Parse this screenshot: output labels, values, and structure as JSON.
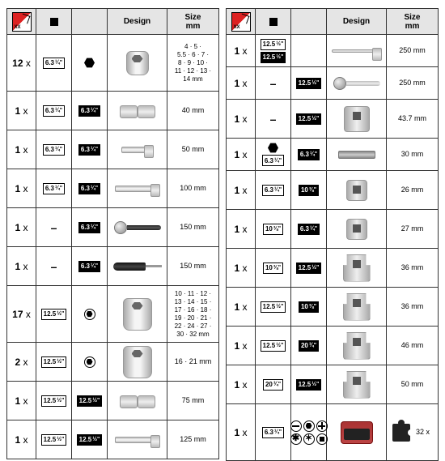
{
  "headers": {
    "design": "Design",
    "size": "Size\nmm"
  },
  "left": [
    {
      "qty": "12",
      "drive": {
        "t": "tag",
        "n": "6.3",
        "f": "¼\""
      },
      "type": {
        "t": "hex"
      },
      "tool": "socket",
      "size": "4 · 5 ·\n5.5 · 6 · 7 ·\n8 · 9 · 10 ·\n11 · 12 · 13 ·\n14 mm",
      "tall": true,
      "multi": true
    },
    {
      "qty": "1",
      "drive": {
        "t": "tag",
        "n": "6.3",
        "f": "¼\""
      },
      "type": {
        "t": "tagInv",
        "n": "6.3",
        "f": "¼\""
      },
      "tool": "ujoint",
      "size": "40 mm"
    },
    {
      "qty": "1",
      "drive": {
        "t": "tag",
        "n": "6.3",
        "f": "¼\""
      },
      "type": {
        "t": "tagInv",
        "n": "6.3",
        "f": "¼\""
      },
      "tool": "ext40",
      "size": "50 mm"
    },
    {
      "qty": "1",
      "drive": {
        "t": "tag",
        "n": "6.3",
        "f": "¼\""
      },
      "type": {
        "t": "tagInv",
        "n": "6.3",
        "f": "¼\""
      },
      "tool": "ext56",
      "size": "100 mm"
    },
    {
      "qty": "1",
      "drive": {
        "t": "dash"
      },
      "type": {
        "t": "tagInv",
        "n": "6.3",
        "f": "¼\""
      },
      "tool": "ratchet",
      "size": "150 mm"
    },
    {
      "qty": "1",
      "drive": {
        "t": "dash"
      },
      "type": {
        "t": "tagInv",
        "n": "6.3",
        "f": "¼\""
      },
      "tool": "screwd",
      "size": "150 mm"
    },
    {
      "qty": "17",
      "drive": {
        "t": "tag",
        "n": "12.5",
        "f": "½\""
      },
      "type": {
        "t": "chex"
      },
      "tool": "socketL",
      "size": "10 · 11 · 12 ·\n13 · 14 · 15 ·\n17 · 16 · 18 ·\n19 · 20 · 21 ·\n22 · 24 · 27 ·\n30 · 32 mm",
      "tall": true,
      "multi": true
    },
    {
      "qty": "2",
      "drive": {
        "t": "tag",
        "n": "12.5",
        "f": "½\""
      },
      "type": {
        "t": "chex"
      },
      "tool": "socketL",
      "size": "16 · 21 mm"
    },
    {
      "qty": "1",
      "drive": {
        "t": "tag",
        "n": "12.5",
        "f": "½\""
      },
      "type": {
        "t": "tagInv",
        "n": "12.5",
        "f": "½\""
      },
      "tool": "ujoint",
      "size": "75 mm"
    },
    {
      "qty": "1",
      "drive": {
        "t": "tag",
        "n": "12.5",
        "f": "½\""
      },
      "type": {
        "t": "tagInv",
        "n": "12.5",
        "f": "½\""
      },
      "tool": "ext56",
      "size": "125 mm"
    }
  ],
  "right": [
    {
      "qty": "1",
      "drive": {
        "t": "pair",
        "a": {
          "t": "tag",
          "n": "12.5",
          "f": "½\""
        },
        "b": {
          "t": "tagInv",
          "n": "12.5",
          "f": "½\""
        }
      },
      "type": {
        "t": "none"
      },
      "tool": "ext62thin",
      "size": "250 mm",
      "short": true
    },
    {
      "qty": "1",
      "drive": {
        "t": "dash"
      },
      "type": {
        "t": "tagInv",
        "n": "12.5",
        "f": "½\""
      },
      "tool": "ratchetL",
      "size": "250 mm",
      "short": true
    },
    {
      "qty": "1",
      "drive": {
        "t": "dash"
      },
      "type": {
        "t": "tagInv",
        "n": "12.5",
        "f": "½\""
      },
      "tool": "adapter",
      "size": "43.7 mm"
    },
    {
      "qty": "1",
      "drive": {
        "t": "hextag",
        "n": "6.3",
        "f": "¼\""
      },
      "type": {
        "t": "tagInv",
        "n": "6.3",
        "f": "¼\""
      },
      "tool": "bitbar",
      "size": "30 mm",
      "short": true
    },
    {
      "qty": "1",
      "drive": {
        "t": "tag",
        "n": "6.3",
        "f": "¼\""
      },
      "type": {
        "t": "tagInv",
        "n": "10",
        "f": "⅜\""
      },
      "tool": "adapterS",
      "size": "26 mm"
    },
    {
      "qty": "1",
      "drive": {
        "t": "tag",
        "n": "10",
        "f": "⅜\""
      },
      "type": {
        "t": "tagInv",
        "n": "6.3",
        "f": "¼\""
      },
      "tool": "adapterS",
      "size": "27 mm"
    },
    {
      "qty": "1",
      "drive": {
        "t": "tag",
        "n": "10",
        "f": "⅜\""
      },
      "type": {
        "t": "tagInv",
        "n": "12.5",
        "f": "½\""
      },
      "tool": "adapterStep",
      "size": "36 mm"
    },
    {
      "qty": "1",
      "drive": {
        "t": "tag",
        "n": "12.5",
        "f": "½\""
      },
      "type": {
        "t": "tagInv",
        "n": "10",
        "f": "⅜\""
      },
      "tool": "adapterStep",
      "size": "36 mm"
    },
    {
      "qty": "1",
      "drive": {
        "t": "tag",
        "n": "12.5",
        "f": "½\""
      },
      "type": {
        "t": "tagInv",
        "n": "20",
        "f": "¾\""
      },
      "tool": "adapterStep",
      "size": "46 mm"
    },
    {
      "qty": "1",
      "drive": {
        "t": "tag",
        "n": "20",
        "f": "¾\""
      },
      "type": {
        "t": "tagInv",
        "n": "12.5",
        "f": "½\""
      },
      "tool": "adapterStep",
      "size": "50 mm"
    },
    {
      "qty": "1",
      "drive": {
        "t": "tag",
        "n": "6.3",
        "f": "¼\""
      },
      "type": {
        "t": "bits"
      },
      "tool": "case",
      "size": "32 x",
      "tall": true,
      "puzzle": true
    }
  ]
}
